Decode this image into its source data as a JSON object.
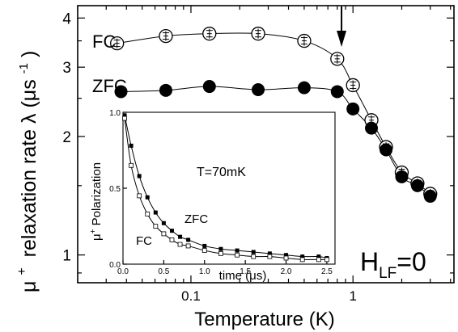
{
  "chart_data": [
    {
      "type": "scatter",
      "xscale": "log",
      "yscale": "log",
      "xlim": [
        0.02,
        4.2
      ],
      "ylim": [
        0.85,
        4.3
      ],
      "xticks": [
        {
          "value": 0.1,
          "label": "0.1"
        },
        {
          "value": 1,
          "label": "1"
        }
      ],
      "yticks": [
        {
          "value": 1,
          "label": "1"
        },
        {
          "value": 2,
          "label": "2"
        },
        {
          "value": 3,
          "label": "3"
        },
        {
          "value": 4,
          "label": "4"
        }
      ],
      "xlabel": "Temperature (K)",
      "ylabel_prefix": "+",
      "ylabel_mu": "μ",
      "ylabel_main": "relaxation rate λ (μs",
      "ylabel_exp": "-1",
      "ylabel_close": ")",
      "series": [
        {
          "name": "FC",
          "marker": "open-circle-errorbar",
          "color": "#000000",
          "x": [
            0.035,
            0.07,
            0.13,
            0.26,
            0.5,
            0.8,
            1.0,
            1.3,
            1.6,
            2.0,
            2.5,
            3.0
          ],
          "y": [
            3.45,
            3.6,
            3.65,
            3.65,
            3.5,
            3.15,
            2.7,
            2.2,
            1.88,
            1.62,
            1.52,
            1.43
          ]
        },
        {
          "name": "ZFC",
          "marker": "filled-circle",
          "color": "#000000",
          "x": [
            0.037,
            0.07,
            0.13,
            0.26,
            0.5,
            0.8,
            1.0,
            1.3,
            1.6,
            2.0,
            2.5,
            3.0
          ],
          "y": [
            2.6,
            2.62,
            2.68,
            2.63,
            2.66,
            2.6,
            2.35,
            2.1,
            1.85,
            1.58,
            1.5,
            1.41
          ]
        }
      ],
      "annotations": {
        "hlf_main": "H",
        "hlf_sub": "LF",
        "hlf_value": "=0",
        "arrow_at_x": 0.85
      }
    },
    {
      "type": "scatter",
      "inset": true,
      "xlim": [
        0,
        2.6
      ],
      "ylim": [
        0,
        1.0
      ],
      "xticks": [
        {
          "value": 0,
          "label": "0.0"
        },
        {
          "value": 0.5,
          "label": "0.5"
        },
        {
          "value": 1.0,
          "label": "1.0"
        },
        {
          "value": 1.5,
          "label": "1.5"
        },
        {
          "value": 2.0,
          "label": "2.0"
        },
        {
          "value": 2.5,
          "label": "2.5"
        }
      ],
      "yticks": [
        {
          "value": 0,
          "label": "0.0"
        },
        {
          "value": 0.5,
          "label": "0.5"
        },
        {
          "value": 1.0,
          "label": "1.0"
        }
      ],
      "xlabel": "time (μs)",
      "ylabel_prefix": "μ",
      "ylabel_sup": "+",
      "ylabel_main": " Polarization",
      "annotation": "T=70mK",
      "series": [
        {
          "name": "ZFC",
          "marker": "filled-square",
          "color": "#000000",
          "x": [
            0.02,
            0.1,
            0.2,
            0.3,
            0.4,
            0.5,
            0.6,
            0.7,
            0.8,
            1.0,
            1.2,
            1.4,
            1.6,
            1.8,
            2.0,
            2.2,
            2.4,
            2.5
          ],
          "y": [
            0.98,
            0.78,
            0.58,
            0.44,
            0.34,
            0.27,
            0.22,
            0.18,
            0.16,
            0.12,
            0.1,
            0.09,
            0.08,
            0.07,
            0.06,
            0.05,
            0.05,
            0.04
          ]
        },
        {
          "name": "FC",
          "marker": "open-square",
          "color": "#000000",
          "x": [
            0.02,
            0.1,
            0.2,
            0.3,
            0.4,
            0.5,
            0.6,
            0.7,
            0.8,
            1.0,
            1.2,
            1.4,
            1.6,
            1.8,
            2.0,
            2.2,
            2.4,
            2.5
          ],
          "y": [
            0.96,
            0.65,
            0.45,
            0.33,
            0.25,
            0.2,
            0.16,
            0.13,
            0.12,
            0.09,
            0.07,
            0.06,
            0.05,
            0.05,
            0.04,
            0.03,
            0.03,
            0.03
          ]
        }
      ]
    }
  ]
}
